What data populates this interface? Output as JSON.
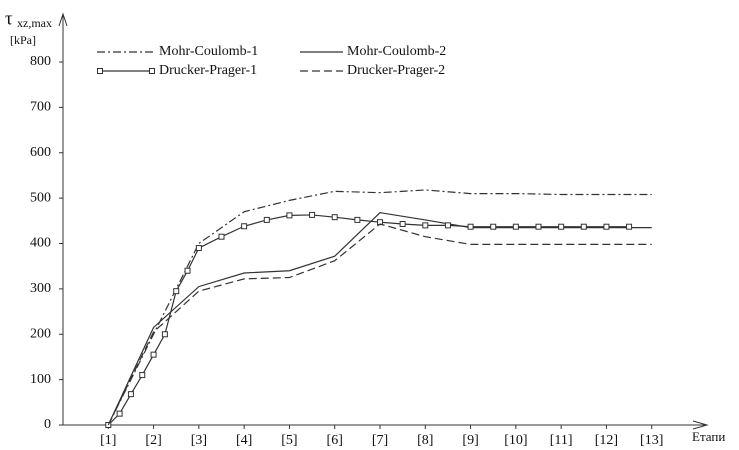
{
  "chart_data": {
    "type": "line",
    "y_label_symbol": "τ",
    "y_label_subscript": "xz,max",
    "y_unit": "[kPa]",
    "x_label": "Етапи",
    "xlim": [
      0,
      14
    ],
    "ylim": [
      0,
      800
    ],
    "xticks": [
      {
        "value": 1,
        "label": "[1]"
      },
      {
        "value": 2,
        "label": "[2]"
      },
      {
        "value": 3,
        "label": "[3]"
      },
      {
        "value": 4,
        "label": "[4]"
      },
      {
        "value": 5,
        "label": "[5]"
      },
      {
        "value": 6,
        "label": "[6]"
      },
      {
        "value": 7,
        "label": "[7]"
      },
      {
        "value": 8,
        "label": "[8]"
      },
      {
        "value": 9,
        "label": "[9]"
      },
      {
        "value": 10,
        "label": "[10]"
      },
      {
        "value": 11,
        "label": "[11]"
      },
      {
        "value": 12,
        "label": "[12]"
      },
      {
        "value": 13,
        "label": "[13]"
      }
    ],
    "yticks": [
      0,
      100,
      200,
      300,
      400,
      500,
      600,
      700,
      800
    ],
    "series": [
      {
        "name": "Mohr-Coulomb-1",
        "color": "#333333",
        "style": "dashdot",
        "markers": false,
        "x": [
          1,
          2,
          3,
          4,
          5,
          6,
          7,
          8,
          9,
          10,
          11,
          12,
          13
        ],
        "values": [
          0,
          200,
          400,
          470,
          495,
          515,
          512,
          518,
          510,
          510,
          508,
          508,
          508
        ]
      },
      {
        "name": "Mohr-Coulomb-2",
        "color": "#333333",
        "style": "solid",
        "markers": false,
        "x": [
          1,
          2,
          3,
          4,
          5,
          6,
          7,
          8,
          9,
          10,
          11,
          12,
          13
        ],
        "values": [
          0,
          215,
          305,
          335,
          340,
          372,
          468,
          452,
          435,
          435,
          435,
          435,
          435
        ]
      },
      {
        "name": "Drucker-Prager-1",
        "color": "#333333",
        "style": "solid",
        "markers": true,
        "x": [
          1,
          1.25,
          1.5,
          1.75,
          2,
          2.25,
          2.5,
          2.75,
          3,
          3.5,
          4,
          4.5,
          5,
          5.5,
          6,
          6.5,
          7,
          7.5,
          8,
          8.5,
          9,
          9.5,
          10,
          10.5,
          11,
          11.5,
          12,
          12.5
        ],
        "values": [
          0,
          25,
          68,
          110,
          155,
          200,
          295,
          340,
          390,
          415,
          438,
          452,
          462,
          463,
          458,
          452,
          447,
          443,
          440,
          440,
          437,
          437,
          437,
          437,
          437,
          437,
          437,
          437
        ]
      },
      {
        "name": "Drucker-Prager-2",
        "color": "#333333",
        "style": "dashed",
        "markers": false,
        "x": [
          1,
          2,
          3,
          4,
          5,
          6,
          7,
          8,
          9,
          10,
          11,
          12,
          13
        ],
        "values": [
          0,
          205,
          295,
          322,
          325,
          362,
          443,
          415,
          398,
          398,
          398,
          398,
          398
        ]
      }
    ]
  }
}
